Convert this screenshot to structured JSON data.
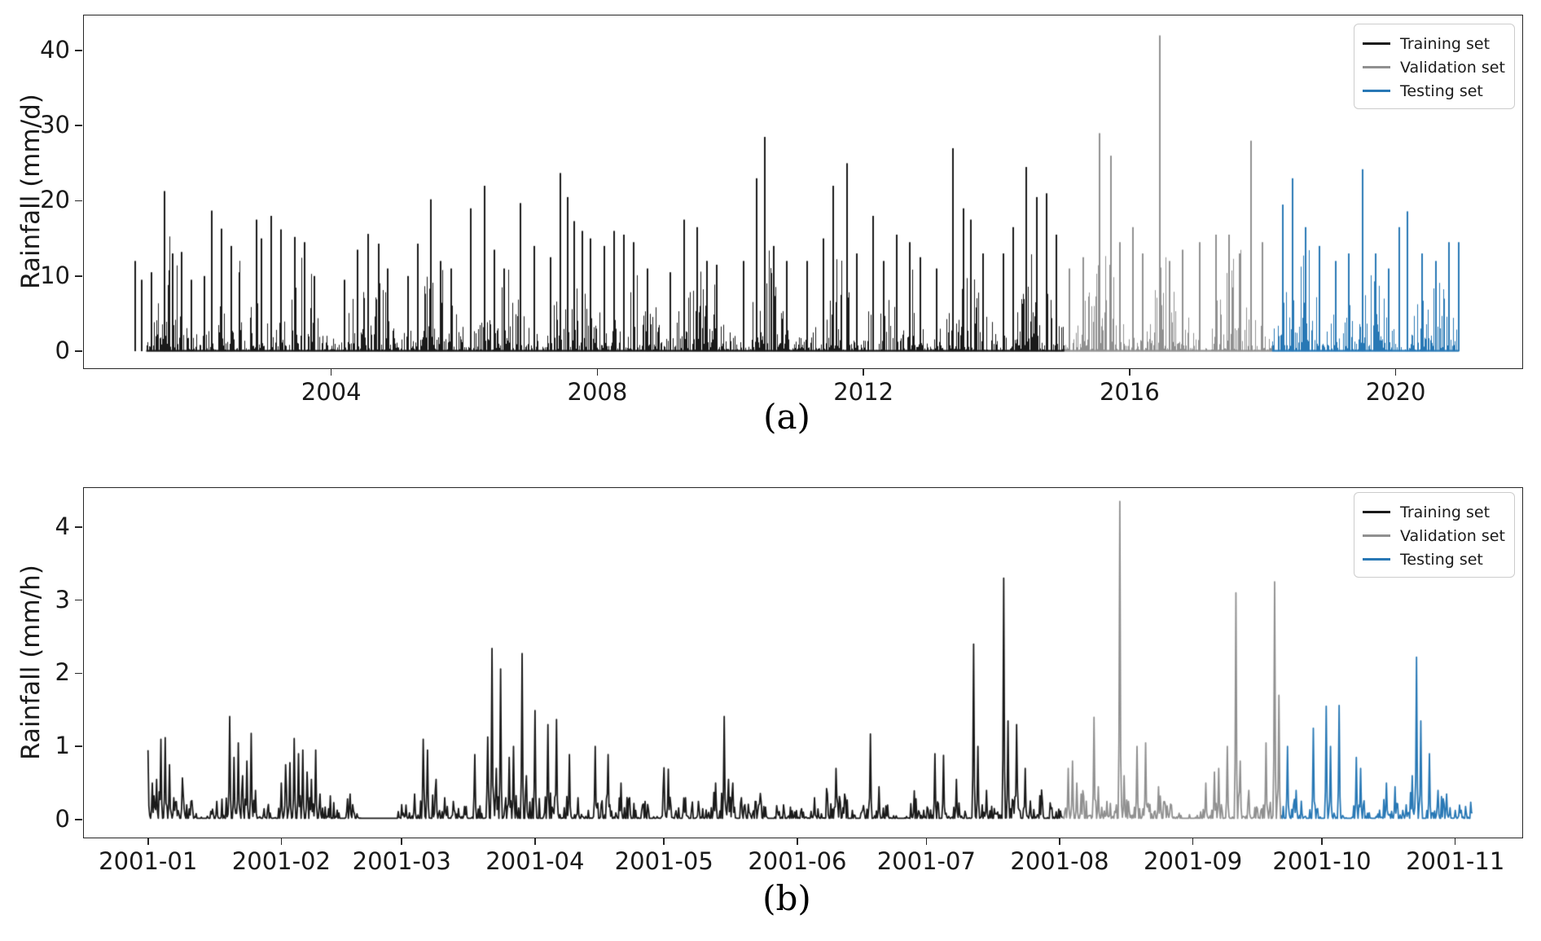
{
  "chart_data": {
    "type": "line",
    "description": "Rainfall time series split into training, validation and testing sets; panel (a) daily rainfall 2001-2021, panel (b) hourly rainfall Jan-Nov 2001. Spiky series plotted from zero baseline.",
    "legend_position": "upper right",
    "grid": false,
    "panels": [
      {
        "caption": "(a)",
        "ylabel": "Rainfall (mm/d)",
        "x_unit": "year",
        "xlim": [
          2000.27,
          2021.89
        ],
        "ylim": [
          -2.16,
          44.76
        ],
        "xticks": {
          "values": [
            2004,
            2008,
            2012,
            2016,
            2020
          ],
          "labels": [
            "2004",
            "2008",
            "2012",
            "2016",
            "2020"
          ]
        },
        "yticks": {
          "values": [
            0,
            10,
            20,
            30,
            40
          ],
          "labels": [
            "0",
            "10",
            "20",
            "30",
            "40"
          ]
        },
        "data_range": [
          2001.22,
          2020.95
        ],
        "segments": [
          {
            "label": "Training set",
            "color": "#1a1a1a",
            "range": [
              2001.22,
              2015.02
            ]
          },
          {
            "label": "Validation set",
            "color": "#909090",
            "range": [
              2015.02,
              2018.14
            ]
          },
          {
            "label": "Testing set",
            "color": "#2878b5",
            "range": [
              2018.14,
              2020.95
            ]
          }
        ],
        "peaks": [
          [
            2001.05,
            12
          ],
          [
            2001.15,
            9.5
          ],
          [
            2001.3,
            10.5
          ],
          [
            2001.5,
            21.3
          ],
          [
            2001.62,
            13
          ],
          [
            2001.75,
            13.2
          ],
          [
            2001.9,
            9.5
          ],
          [
            2002.1,
            10
          ],
          [
            2002.2,
            18.7
          ],
          [
            2002.35,
            16.3
          ],
          [
            2002.5,
            14
          ],
          [
            2002.62,
            10.5
          ],
          [
            2002.88,
            17.5
          ],
          [
            2002.95,
            15
          ],
          [
            2003.1,
            18
          ],
          [
            2003.25,
            16.2
          ],
          [
            2003.45,
            15.2
          ],
          [
            2003.6,
            14.5
          ],
          [
            2003.75,
            10
          ],
          [
            2004.2,
            9.5
          ],
          [
            2004.4,
            13.5
          ],
          [
            2004.55,
            15.6
          ],
          [
            2004.72,
            14.3
          ],
          [
            2004.85,
            11
          ],
          [
            2005.15,
            10
          ],
          [
            2005.3,
            14.3
          ],
          [
            2005.5,
            20.2
          ],
          [
            2005.65,
            12
          ],
          [
            2005.8,
            11
          ],
          [
            2006.1,
            19
          ],
          [
            2006.3,
            22
          ],
          [
            2006.45,
            13.5
          ],
          [
            2006.6,
            11
          ],
          [
            2006.85,
            19.7
          ],
          [
            2007.05,
            14
          ],
          [
            2007.3,
            12.5
          ],
          [
            2007.45,
            23.7
          ],
          [
            2007.55,
            20.5
          ],
          [
            2007.65,
            17.3
          ],
          [
            2007.78,
            16
          ],
          [
            2007.9,
            15
          ],
          [
            2008.1,
            14
          ],
          [
            2008.25,
            16
          ],
          [
            2008.4,
            15.5
          ],
          [
            2008.55,
            14.5
          ],
          [
            2008.75,
            11
          ],
          [
            2009.1,
            10.5
          ],
          [
            2009.3,
            17.5
          ],
          [
            2009.5,
            16.5
          ],
          [
            2009.65,
            12
          ],
          [
            2009.8,
            11.5
          ],
          [
            2010.2,
            12
          ],
          [
            2010.4,
            23
          ],
          [
            2010.52,
            28.5
          ],
          [
            2010.65,
            14
          ],
          [
            2010.85,
            12
          ],
          [
            2011.15,
            12
          ],
          [
            2011.4,
            15
          ],
          [
            2011.55,
            22
          ],
          [
            2011.75,
            25
          ],
          [
            2011.9,
            13
          ],
          [
            2012.15,
            18
          ],
          [
            2012.3,
            12
          ],
          [
            2012.5,
            15.5
          ],
          [
            2012.7,
            14.5
          ],
          [
            2012.85,
            12.5
          ],
          [
            2013.1,
            11
          ],
          [
            2013.35,
            27
          ],
          [
            2013.5,
            19
          ],
          [
            2013.62,
            17.5
          ],
          [
            2013.8,
            13
          ],
          [
            2014.1,
            13
          ],
          [
            2014.25,
            16.5
          ],
          [
            2014.45,
            24.5
          ],
          [
            2014.6,
            20.5
          ],
          [
            2014.75,
            21
          ],
          [
            2014.9,
            15.5
          ],
          [
            2015.1,
            11
          ],
          [
            2015.3,
            12.5
          ],
          [
            2015.55,
            29
          ],
          [
            2015.72,
            26
          ],
          [
            2015.85,
            14.5
          ],
          [
            2016.05,
            16.5
          ],
          [
            2016.2,
            13
          ],
          [
            2016.45,
            42
          ],
          [
            2016.6,
            12
          ],
          [
            2016.8,
            13.5
          ],
          [
            2017.05,
            14.5
          ],
          [
            2017.3,
            15.5
          ],
          [
            2017.5,
            15.5
          ],
          [
            2017.65,
            13
          ],
          [
            2017.82,
            28
          ],
          [
            2018.0,
            14.5
          ],
          [
            2018.3,
            19.5
          ],
          [
            2018.45,
            23
          ],
          [
            2018.65,
            16.5
          ],
          [
            2018.85,
            14
          ],
          [
            2019.1,
            12
          ],
          [
            2019.3,
            13
          ],
          [
            2019.5,
            24.2
          ],
          [
            2019.7,
            13
          ],
          [
            2019.9,
            11
          ],
          [
            2020.05,
            16.5
          ],
          [
            2020.18,
            18.6
          ],
          [
            2020.4,
            13
          ],
          [
            2020.6,
            12
          ],
          [
            2020.8,
            14.5
          ],
          [
            2020.95,
            14.5
          ]
        ],
        "noise": {
          "seed": 11,
          "amp": 13.5,
          "season_center": 0.58,
          "season_sigma": 0.21,
          "drizzle_prob": 0.3,
          "tall_prob": 0.015
        }
      },
      {
        "caption": "(b)",
        "ylabel": "Rainfall (mm/h)",
        "x_unit": "days since 2001-01-01",
        "xlim": [
          -15.1,
          319.4
        ],
        "ylim": [
          -0.233,
          4.544
        ],
        "xticks": {
          "values": [
            0,
            31,
            59,
            90,
            120,
            151,
            181,
            212,
            243,
            273,
            304
          ],
          "labels": [
            "2001-01",
            "2001-02",
            "2001-03",
            "2001-04",
            "2001-05",
            "2001-06",
            "2001-07",
            "2001-08",
            "2001-09",
            "2001-10",
            "2001-11"
          ]
        },
        "yticks": {
          "values": [
            0,
            1,
            2,
            3,
            4
          ],
          "labels": [
            "0",
            "1",
            "2",
            "3",
            "4"
          ]
        },
        "data_range": [
          0,
          308
        ],
        "segments": [
          {
            "label": "Training set",
            "color": "#1a1a1a",
            "range": [
              0,
              212.6
            ]
          },
          {
            "label": "Validation set",
            "color": "#909090",
            "range": [
              212.6,
              263.6
            ]
          },
          {
            "label": "Testing set",
            "color": "#2878b5",
            "range": [
              263.6,
              308
            ]
          }
        ],
        "peaks": [
          [
            0,
            0.95
          ],
          [
            1,
            0.5
          ],
          [
            2,
            0.55
          ],
          [
            3,
            1.1
          ],
          [
            4,
            1.12
          ],
          [
            5,
            0.75
          ],
          [
            6,
            0.3
          ],
          [
            8,
            0.57
          ],
          [
            10,
            0.25
          ],
          [
            16,
            0.25
          ],
          [
            19,
            1.41
          ],
          [
            20,
            0.85
          ],
          [
            21,
            1.05
          ],
          [
            22,
            0.6
          ],
          [
            23,
            0.8
          ],
          [
            24,
            1.18
          ],
          [
            25,
            0.4
          ],
          [
            27,
            0.15
          ],
          [
            31,
            0.5
          ],
          [
            32,
            0.75
          ],
          [
            33,
            0.78
          ],
          [
            34,
            1.11
          ],
          [
            35,
            0.9
          ],
          [
            36,
            0.95
          ],
          [
            37,
            0.65
          ],
          [
            38,
            0.55
          ],
          [
            39,
            0.95
          ],
          [
            40,
            0.35
          ],
          [
            42,
            0.15
          ],
          [
            47,
            0.35
          ],
          [
            60,
            0.2
          ],
          [
            62,
            0.35
          ],
          [
            64,
            1.1
          ],
          [
            65,
            0.95
          ],
          [
            67,
            0.55
          ],
          [
            69,
            0.3
          ],
          [
            71,
            0.25
          ],
          [
            74,
            0.18
          ],
          [
            76,
            0.89
          ],
          [
            79,
            1.13
          ],
          [
            80,
            2.34
          ],
          [
            81,
            0.7
          ],
          [
            82,
            2.06
          ],
          [
            84,
            0.85
          ],
          [
            85,
            1.0
          ],
          [
            87,
            2.27
          ],
          [
            88,
            0.6
          ],
          [
            90,
            1.49
          ],
          [
            93,
            1.3
          ],
          [
            95,
            1.37
          ],
          [
            98,
            0.89
          ],
          [
            100,
            0.3
          ],
          [
            104,
            1.0
          ],
          [
            107,
            0.89
          ],
          [
            110,
            0.5
          ],
          [
            112,
            0.3
          ],
          [
            115,
            0.2
          ],
          [
            120,
            0.71
          ],
          [
            121,
            0.69
          ],
          [
            125,
            0.3
          ],
          [
            128,
            0.25
          ],
          [
            132,
            0.5
          ],
          [
            134,
            1.41
          ],
          [
            135,
            0.55
          ],
          [
            136,
            0.5
          ],
          [
            138,
            0.3
          ],
          [
            142,
            0.2
          ],
          [
            148,
            0.1
          ],
          [
            152,
            0.15
          ],
          [
            155,
            0.3
          ],
          [
            158,
            0.35
          ],
          [
            160,
            0.7
          ],
          [
            162,
            0.35
          ],
          [
            168,
            1.17
          ],
          [
            170,
            0.45
          ],
          [
            172,
            0.2
          ],
          [
            178,
            0.1
          ],
          [
            183,
            0.9
          ],
          [
            185,
            0.88
          ],
          [
            188,
            0.55
          ],
          [
            192,
            2.4
          ],
          [
            193,
            1.0
          ],
          [
            195,
            0.4
          ],
          [
            199,
            3.3
          ],
          [
            200,
            1.35
          ],
          [
            202,
            1.3
          ],
          [
            204,
            0.7
          ],
          [
            208,
            0.25
          ],
          [
            210,
            0.15
          ],
          [
            214,
            0.7
          ],
          [
            215,
            0.8
          ],
          [
            216,
            0.5
          ],
          [
            217,
            0.35
          ],
          [
            220,
            1.4
          ],
          [
            221,
            0.45
          ],
          [
            223,
            0.25
          ],
          [
            226,
            4.35
          ],
          [
            227,
            0.6
          ],
          [
            230,
            1.0
          ],
          [
            232,
            1.05
          ],
          [
            235,
            0.45
          ],
          [
            238,
            0.2
          ],
          [
            246,
            0.5
          ],
          [
            248,
            0.65
          ],
          [
            249,
            0.7
          ],
          [
            251,
            1.0
          ],
          [
            253,
            3.1
          ],
          [
            254,
            0.8
          ],
          [
            256,
            0.4
          ],
          [
            260,
            1.05
          ],
          [
            262,
            3.25
          ],
          [
            263,
            1.7
          ],
          [
            265,
            1.0
          ],
          [
            267,
            0.4
          ],
          [
            271,
            1.25
          ],
          [
            274,
            1.55
          ],
          [
            275,
            1.0
          ],
          [
            277,
            1.56
          ],
          [
            281,
            0.85
          ],
          [
            282,
            0.7
          ],
          [
            288,
            0.5
          ],
          [
            290,
            0.45
          ],
          [
            294,
            0.6
          ],
          [
            295,
            2.22
          ],
          [
            296,
            1.35
          ],
          [
            298,
            0.9
          ],
          [
            300,
            0.4
          ],
          [
            302,
            0.35
          ],
          [
            305,
            0.2
          ],
          [
            308,
            0.1
          ]
        ],
        "noise": {
          "seed": 23,
          "baseline": 0.018,
          "cluster_radius": 2.5,
          "cluster_amp": 0.45
        }
      }
    ]
  }
}
